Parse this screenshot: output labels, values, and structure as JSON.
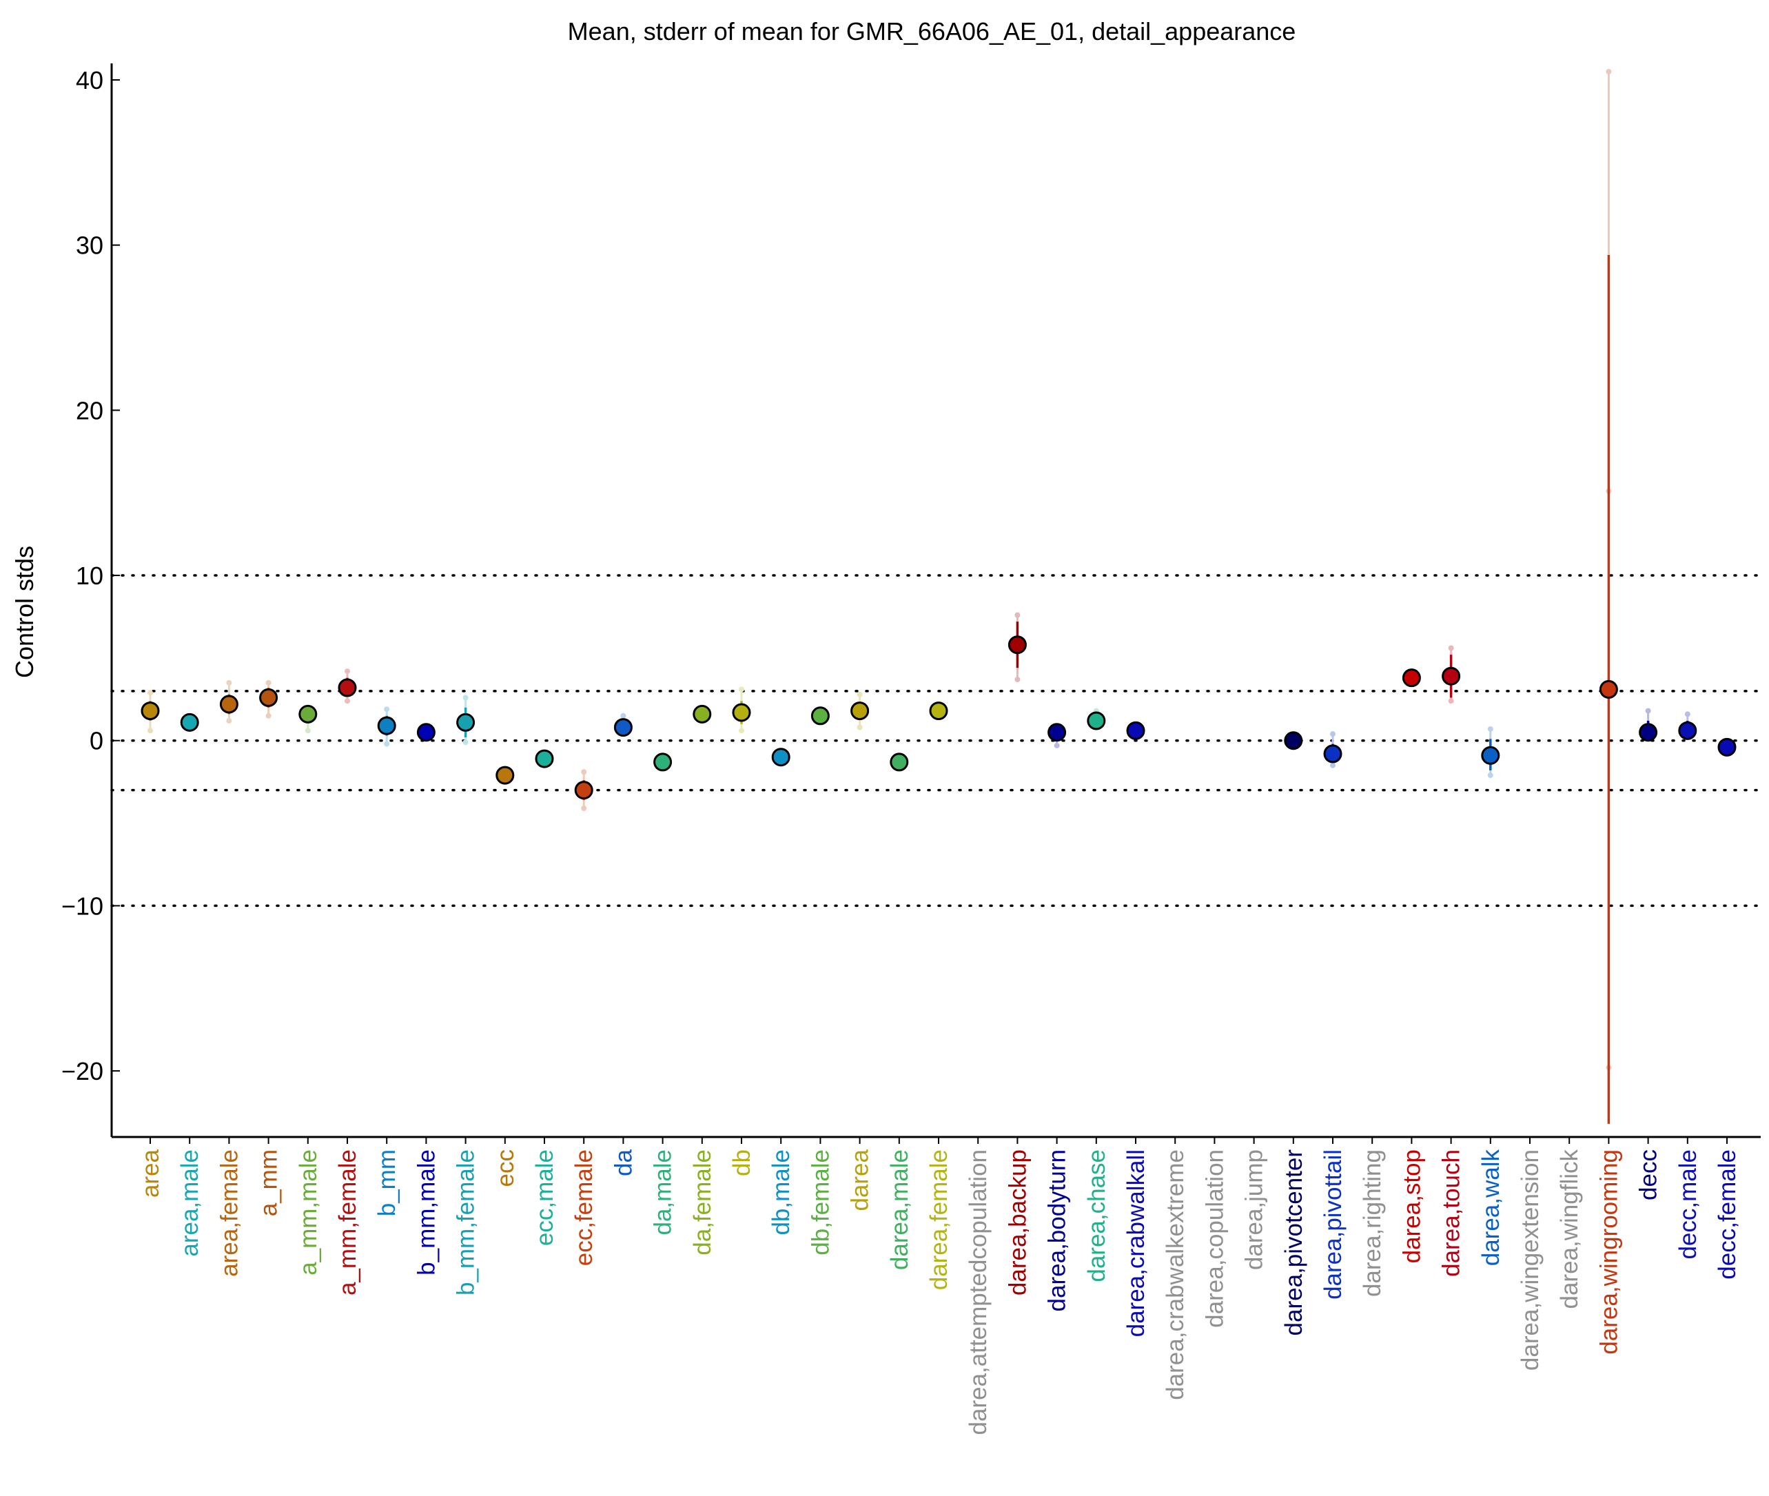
{
  "chart_data": {
    "type": "scatter",
    "title": "Mean, stderr of mean for GMR_66A06_AE_01, detail_appearance",
    "ylabel": "Control stds",
    "xlabel": "",
    "ylim": [
      -24.0,
      41.0
    ],
    "yticks": [
      -20,
      -10,
      0,
      10,
      20,
      30,
      40
    ],
    "reference_lines": [
      -10,
      -3,
      0,
      3,
      10
    ],
    "grid": false,
    "points": [
      {
        "label": "area",
        "mean": 1.8,
        "se_low": 1.2,
        "se_high": 2.4,
        "ext_low": 0.6,
        "ext_high": 2.9,
        "color": "#b8860b"
      },
      {
        "label": "area,male",
        "mean": 1.1,
        "se_low": 0.8,
        "se_high": 1.4,
        "ext_low": null,
        "ext_high": null,
        "color": "#17a7b0"
      },
      {
        "label": "area,female",
        "mean": 2.2,
        "se_low": 1.6,
        "se_high": 2.8,
        "ext_low": 1.2,
        "ext_high": 3.5,
        "color": "#b8650f"
      },
      {
        "label": "a_mm",
        "mean": 2.6,
        "se_low": 2.0,
        "se_high": 3.2,
        "ext_low": 1.5,
        "ext_high": 3.5,
        "color": "#b4540f"
      },
      {
        "label": "a_mm,male",
        "mean": 1.6,
        "se_low": 1.1,
        "se_high": 2.1,
        "ext_low": 0.6,
        "ext_high": null,
        "color": "#6aac3a"
      },
      {
        "label": "a_mm,female",
        "mean": 3.2,
        "se_low": 2.7,
        "se_high": 3.8,
        "ext_low": 2.4,
        "ext_high": 4.2,
        "color": "#b40f0f"
      },
      {
        "label": "b_mm",
        "mean": 0.9,
        "se_low": 0.3,
        "se_high": 1.5,
        "ext_low": -0.2,
        "ext_high": 1.9,
        "color": "#0f7fc4"
      },
      {
        "label": "b_mm,male",
        "mean": 0.5,
        "se_low": 0.3,
        "se_high": 0.7,
        "ext_low": null,
        "ext_high": null,
        "color": "#0000b4"
      },
      {
        "label": "b_mm,female",
        "mean": 1.1,
        "se_low": 0.2,
        "se_high": 2.0,
        "ext_low": -0.1,
        "ext_high": 2.6,
        "color": "#17a0b0"
      },
      {
        "label": "ecc",
        "mean": -2.1,
        "se_low": -2.4,
        "se_high": -1.8,
        "ext_low": null,
        "ext_high": null,
        "color": "#b8760b"
      },
      {
        "label": "ecc,male",
        "mean": -1.1,
        "se_low": -1.4,
        "se_high": -0.8,
        "ext_low": null,
        "ext_high": null,
        "color": "#1ab09a"
      },
      {
        "label": "ecc,female",
        "mean": -3.0,
        "se_low": -3.6,
        "se_high": -2.4,
        "ext_low": -4.1,
        "ext_high": -1.9,
        "color": "#c4400f"
      },
      {
        "label": "da",
        "mean": 0.8,
        "se_low": 0.5,
        "se_high": 1.2,
        "ext_low": null,
        "ext_high": 1.5,
        "color": "#0f5ac4"
      },
      {
        "label": "da,male",
        "mean": -1.3,
        "se_low": -1.6,
        "se_high": -1.0,
        "ext_low": null,
        "ext_high": null,
        "color": "#2eb07a"
      },
      {
        "label": "da,female",
        "mean": 1.6,
        "se_low": 1.3,
        "se_high": 1.9,
        "ext_low": null,
        "ext_high": null,
        "color": "#88b020"
      },
      {
        "label": "db",
        "mean": 1.7,
        "se_low": 1.0,
        "se_high": 2.4,
        "ext_low": 0.6,
        "ext_high": 3.1,
        "color": "#b4b010"
      },
      {
        "label": "db,male",
        "mean": -1.0,
        "se_low": -1.3,
        "se_high": -0.7,
        "ext_low": null,
        "ext_high": null,
        "color": "#0f90c4"
      },
      {
        "label": "db,female",
        "mean": 1.5,
        "se_low": 1.2,
        "se_high": 1.8,
        "ext_low": null,
        "ext_high": null,
        "color": "#5ab040"
      },
      {
        "label": "darea",
        "mean": 1.8,
        "se_low": 1.3,
        "se_high": 2.3,
        "ext_low": 0.8,
        "ext_high": 2.8,
        "color": "#b8a00b"
      },
      {
        "label": "darea,male",
        "mean": -1.3,
        "se_low": -1.6,
        "se_high": -1.0,
        "ext_low": null,
        "ext_high": null,
        "color": "#40b060"
      },
      {
        "label": "darea,female",
        "mean": 1.8,
        "se_low": 1.5,
        "se_high": 2.1,
        "ext_low": null,
        "ext_high": null,
        "color": "#b4b410"
      },
      {
        "label": "darea,attemptedcopulation",
        "mean": null,
        "color": "#909090"
      },
      {
        "label": "darea,backup",
        "mean": 5.8,
        "se_low": 4.4,
        "se_high": 7.2,
        "ext_low": 3.7,
        "ext_high": 7.6,
        "color": "#a00000"
      },
      {
        "label": "darea,bodyturn",
        "mean": 0.5,
        "se_low": 0.0,
        "se_high": 1.0,
        "ext_low": -0.3,
        "ext_high": null,
        "color": "#000090"
      },
      {
        "label": "darea,chase",
        "mean": 1.2,
        "se_low": 0.9,
        "se_high": 1.6,
        "ext_low": null,
        "ext_high": 1.8,
        "color": "#20b08a"
      },
      {
        "label": "darea,crabwalkall",
        "mean": 0.6,
        "se_low": 0.3,
        "se_high": 0.9,
        "ext_low": null,
        "ext_high": null,
        "color": "#0a0ab4"
      },
      {
        "label": "darea,crabwalkextreme",
        "mean": null,
        "color": "#909090"
      },
      {
        "label": "darea,copulation",
        "mean": null,
        "color": "#909090"
      },
      {
        "label": "darea,jump",
        "mean": null,
        "color": "#909090"
      },
      {
        "label": "darea,pivotcenter",
        "mean": 0.0,
        "se_low": -0.2,
        "se_high": 0.2,
        "ext_low": null,
        "ext_high": null,
        "color": "#000060"
      },
      {
        "label": "darea,pivottail",
        "mean": -0.8,
        "se_low": -1.3,
        "se_high": -0.2,
        "ext_low": -1.5,
        "ext_high": 0.4,
        "color": "#0a30c4"
      },
      {
        "label": "darea,righting",
        "mean": null,
        "color": "#909090"
      },
      {
        "label": "darea,stop",
        "mean": 3.8,
        "se_low": 3.5,
        "se_high": 4.1,
        "ext_low": null,
        "ext_high": null,
        "color": "#c40000"
      },
      {
        "label": "darea,touch",
        "mean": 3.9,
        "se_low": 2.6,
        "se_high": 5.2,
        "ext_low": 2.4,
        "ext_high": 5.6,
        "color": "#b40010"
      },
      {
        "label": "darea,walk",
        "mean": -0.9,
        "se_low": -1.8,
        "se_high": 0.1,
        "ext_low": -2.1,
        "ext_high": 0.7,
        "color": "#0a60c4"
      },
      {
        "label": "darea,wingextension",
        "mean": null,
        "color": "#909090"
      },
      {
        "label": "darea,wingflick",
        "mean": null,
        "color": "#909090"
      },
      {
        "label": "darea,wingrooming",
        "mean": 3.1,
        "se_low": -23.2,
        "se_high": 29.4,
        "ext_low": -19.8,
        "ext_high": 40.5,
        "ext_mid": 15.1,
        "color": "#c4360f"
      },
      {
        "label": "decc",
        "mean": 0.5,
        "se_low": 0.0,
        "se_high": 1.2,
        "ext_low": null,
        "ext_high": 1.8,
        "color": "#000080"
      },
      {
        "label": "decc,male",
        "mean": 0.6,
        "se_low": 0.2,
        "se_high": 1.2,
        "ext_low": null,
        "ext_high": 1.6,
        "color": "#0a10b4"
      },
      {
        "label": "decc,female",
        "mean": -0.4,
        "se_low": -0.7,
        "se_high": -0.1,
        "ext_low": null,
        "ext_high": null,
        "color": "#0a0ab4"
      }
    ]
  }
}
